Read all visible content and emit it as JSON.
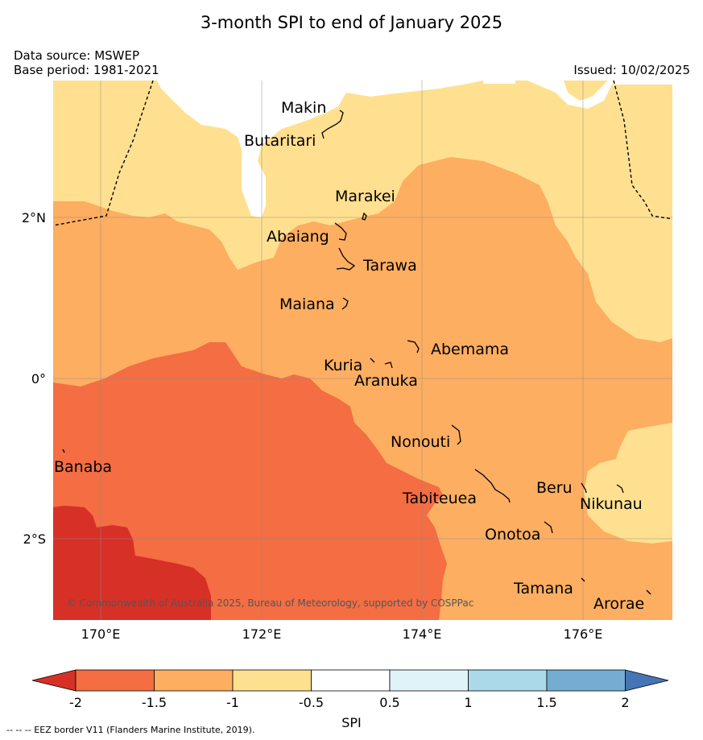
{
  "title": "3-month SPI to end of January 2025",
  "data_source": "Data source: MSWEP",
  "base_period": "Base period: 1981-2021",
  "issued": "Issued: 10/02/2025",
  "copyright": "© Commonwealth of Australia 2025, Bureau of Meteorology, supported by COSPPac",
  "eez_note": "-- -- -- EEZ border V11 (Flanders Marine Institute, 2019).",
  "map": {
    "lat_labels": [
      "2°N",
      "0°",
      "2°S"
    ],
    "lon_labels": [
      "170°E",
      "172°E",
      "174°E",
      "176°E"
    ],
    "places": [
      "Makin",
      "Butaritari",
      "Marakei",
      "Abaiang",
      "Tarawa",
      "Maiana",
      "Abemama",
      "Kuria",
      "Aranuka",
      "Nonouti",
      "Banaba",
      "Tabiteuea",
      "Beru",
      "Nikunau",
      "Onotoa",
      "Tamana",
      "Arorae"
    ]
  },
  "colorbar": {
    "label": "SPI",
    "ticks": [
      "-2",
      "-1.5",
      "-1",
      "-0.5",
      "0.5",
      "1",
      "1.5",
      "2"
    ],
    "colors": {
      "below_-2": "#d73027",
      "-2_-1.5": "#f46d43",
      "-1.5_-1": "#fdae61",
      "-1_-0.5": "#fee090",
      "-0.5_0.5": "#ffffff",
      "0.5_1": "#e0f3f8",
      "1_1.5": "#abd9e9",
      "1.5_2": "#74add1",
      "above_2": "#4575b4"
    }
  }
}
